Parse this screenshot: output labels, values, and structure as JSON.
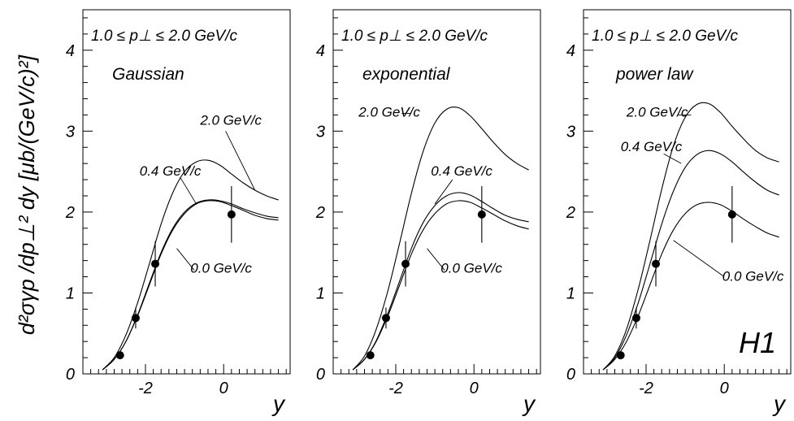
{
  "chart_data": {
    "type": "line",
    "ylabel": "d²σγp /dp⊥² dy  [μb/(GeV/c)²]",
    "badge": "H1",
    "xlim": [
      -3.6,
      1.7
    ],
    "ylim": [
      0,
      4.5
    ],
    "x_ticks": [
      -2,
      0
    ],
    "y_ticks": [
      0,
      1,
      2,
      3,
      4
    ],
    "panels": [
      {
        "xlabel": "y",
        "range_label": "1.0 ≤ p⊥ ≤ 2.0 GeV/c",
        "title": "Gaussian",
        "data_points": [
          {
            "x": -2.65,
            "y": 0.23,
            "err_low": 0.03,
            "err_high": 0.03
          },
          {
            "x": -2.25,
            "y": 0.69,
            "err_low": 0.13,
            "err_high": 0.13
          },
          {
            "x": -1.75,
            "y": 1.36,
            "err_low": 0.28,
            "err_high": 0.28
          },
          {
            "x": 0.2,
            "y": 1.97,
            "err_low": 0.35,
            "err_high": 0.35
          }
        ],
        "series": [
          {
            "name": "0.0 GeV/c",
            "x": [
              -3.1,
              -2.8,
              -2.5,
              -2.2,
              -1.9,
              -1.6,
              -1.3,
              -1.0,
              -0.7,
              -0.4,
              -0.1,
              0.2,
              0.5,
              0.8,
              1.1,
              1.4
            ],
            "y": [
              0.05,
              0.18,
              0.4,
              0.72,
              1.1,
              1.48,
              1.78,
              1.98,
              2.1,
              2.14,
              2.13,
              2.08,
              2.02,
              1.96,
              1.92,
              1.9
            ]
          },
          {
            "name": "0.4 GeV/c",
            "x": [
              -3.1,
              -2.8,
              -2.5,
              -2.2,
              -1.9,
              -1.6,
              -1.3,
              -1.0,
              -0.7,
              -0.4,
              -0.1,
              0.2,
              0.5,
              0.8,
              1.1,
              1.4
            ],
            "y": [
              0.05,
              0.18,
              0.4,
              0.73,
              1.12,
              1.5,
              1.8,
              2.0,
              2.11,
              2.15,
              2.14,
              2.1,
              2.04,
              1.99,
              1.95,
              1.93
            ]
          },
          {
            "name": "2.0 GeV/c",
            "x": [
              -3.1,
              -2.8,
              -2.5,
              -2.2,
              -1.9,
              -1.6,
              -1.3,
              -1.0,
              -0.7,
              -0.4,
              -0.1,
              0.2,
              0.5,
              0.8,
              1.1,
              1.4
            ],
            "y": [
              0.05,
              0.2,
              0.48,
              0.88,
              1.36,
              1.85,
              2.24,
              2.5,
              2.62,
              2.64,
              2.58,
              2.47,
              2.36,
              2.27,
              2.2,
              2.15
            ]
          }
        ]
      },
      {
        "xlabel": "y",
        "range_label": "1.0 ≤ p⊥ ≤ 2.0 GeV/c",
        "title": "exponential",
        "data_points": [
          {
            "x": -2.65,
            "y": 0.23,
            "err_low": 0.03,
            "err_high": 0.03
          },
          {
            "x": -2.25,
            "y": 0.69,
            "err_low": 0.13,
            "err_high": 0.13
          },
          {
            "x": -1.75,
            "y": 1.36,
            "err_low": 0.28,
            "err_high": 0.28
          },
          {
            "x": 0.2,
            "y": 1.97,
            "err_low": 0.35,
            "err_high": 0.35
          }
        ],
        "series": [
          {
            "name": "0.0 GeV/c",
            "x": [
              -3.1,
              -2.8,
              -2.5,
              -2.2,
              -1.9,
              -1.6,
              -1.3,
              -1.0,
              -0.7,
              -0.4,
              -0.1,
              0.2,
              0.5,
              0.8,
              1.1,
              1.4
            ],
            "y": [
              0.05,
              0.18,
              0.4,
              0.72,
              1.1,
              1.48,
              1.78,
              1.98,
              2.1,
              2.14,
              2.12,
              2.05,
              1.97,
              1.89,
              1.83,
              1.79
            ]
          },
          {
            "name": "0.4 GeV/c",
            "x": [
              -3.1,
              -2.8,
              -2.5,
              -2.2,
              -1.9,
              -1.6,
              -1.3,
              -1.0,
              -0.7,
              -0.4,
              -0.1,
              0.2,
              0.5,
              0.8,
              1.1,
              1.4
            ],
            "y": [
              0.05,
              0.18,
              0.41,
              0.75,
              1.15,
              1.55,
              1.87,
              2.08,
              2.2,
              2.24,
              2.21,
              2.13,
              2.04,
              1.96,
              1.91,
              1.88
            ]
          },
          {
            "name": "2.0 GeV/c",
            "x": [
              -3.1,
              -2.8,
              -2.5,
              -2.2,
              -1.9,
              -1.6,
              -1.3,
              -1.0,
              -0.7,
              -0.4,
              -0.1,
              0.2,
              0.5,
              0.8,
              1.1,
              1.4
            ],
            "y": [
              0.05,
              0.22,
              0.55,
              1.03,
              1.62,
              2.23,
              2.75,
              3.1,
              3.27,
              3.29,
              3.19,
              3.03,
              2.86,
              2.71,
              2.6,
              2.52
            ]
          }
        ]
      },
      {
        "xlabel": "y",
        "range_label": "1.0 ≤ p⊥ ≤ 2.0 GeV/c",
        "title": "power law",
        "data_points": [
          {
            "x": -2.65,
            "y": 0.23,
            "err_low": 0.03,
            "err_high": 0.03
          },
          {
            "x": -2.25,
            "y": 0.69,
            "err_low": 0.13,
            "err_high": 0.13
          },
          {
            "x": -1.75,
            "y": 1.36,
            "err_low": 0.28,
            "err_high": 0.28
          },
          {
            "x": 0.2,
            "y": 1.97,
            "err_low": 0.35,
            "err_high": 0.35
          }
        ],
        "series": [
          {
            "name": "0.0 GeV/c",
            "x": [
              -3.1,
              -2.8,
              -2.5,
              -2.2,
              -1.9,
              -1.6,
              -1.3,
              -1.0,
              -0.7,
              -0.4,
              -0.1,
              0.2,
              0.5,
              0.8,
              1.1,
              1.4
            ],
            "y": [
              0.05,
              0.18,
              0.4,
              0.72,
              1.1,
              1.48,
              1.78,
              1.98,
              2.09,
              2.12,
              2.09,
              2.01,
              1.91,
              1.82,
              1.74,
              1.69
            ]
          },
          {
            "name": "0.4 GeV/c",
            "x": [
              -3.1,
              -2.8,
              -2.5,
              -2.2,
              -1.9,
              -1.6,
              -1.3,
              -1.0,
              -0.7,
              -0.4,
              -0.1,
              0.2,
              0.5,
              0.8,
              1.1,
              1.4
            ],
            "y": [
              0.05,
              0.2,
              0.48,
              0.88,
              1.36,
              1.85,
              2.26,
              2.55,
              2.71,
              2.76,
              2.72,
              2.62,
              2.49,
              2.37,
              2.27,
              2.21
            ]
          },
          {
            "name": "2.0 GeV/c",
            "x": [
              -3.1,
              -2.8,
              -2.5,
              -2.2,
              -1.9,
              -1.6,
              -1.3,
              -1.0,
              -0.7,
              -0.4,
              -0.1,
              0.2,
              0.5,
              0.8,
              1.1,
              1.4
            ],
            "y": [
              0.05,
              0.22,
              0.55,
              1.05,
              1.65,
              2.28,
              2.82,
              3.17,
              3.33,
              3.34,
              3.23,
              3.06,
              2.9,
              2.76,
              2.67,
              2.62
            ]
          }
        ]
      }
    ]
  }
}
